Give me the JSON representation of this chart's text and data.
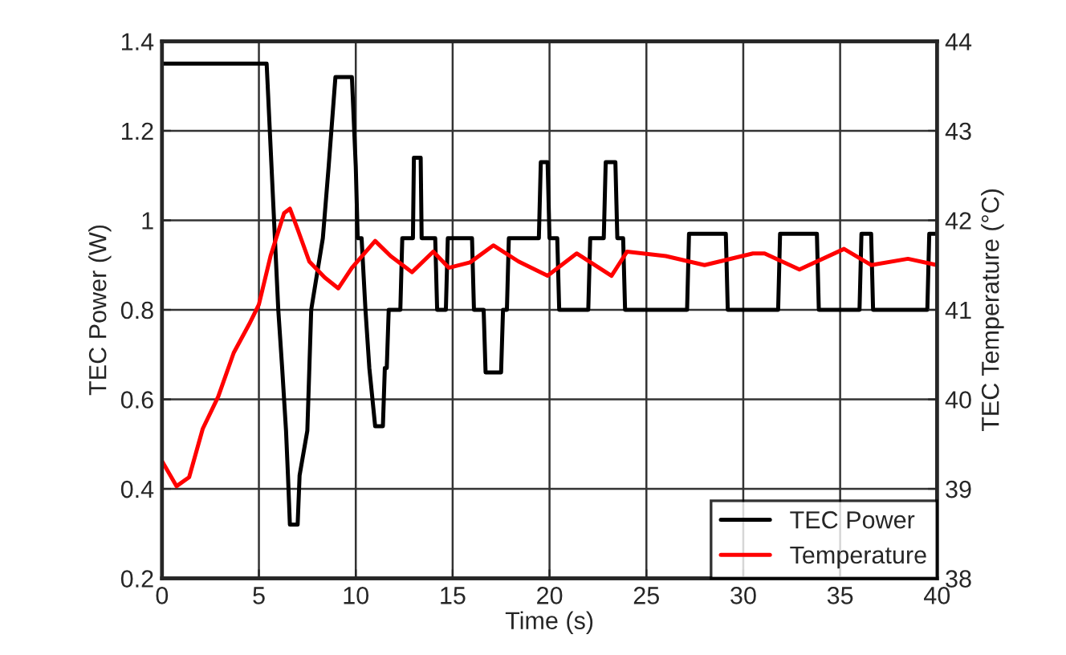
{
  "chart_data": {
    "type": "line",
    "xlabel": "Time (s)",
    "ylabel": "TEC Power (W)",
    "y2label": "TEC Temperature (°C)",
    "xlim": [
      0,
      40
    ],
    "xticks": [
      0,
      5,
      10,
      15,
      20,
      25,
      30,
      35,
      40
    ],
    "ylim": [
      0.2,
      1.4
    ],
    "yticks": [
      0.2,
      0.4,
      0.6,
      0.8,
      1,
      1.2,
      1.4
    ],
    "y2lim": [
      38,
      44
    ],
    "y2ticks": [
      38,
      39,
      40,
      41,
      42,
      43,
      44
    ],
    "grid": true,
    "legend": "bottom right",
    "marker": "none",
    "line_style": "solid",
    "series": [
      {
        "name": "TEC Power",
        "color": "#000000",
        "x": [
          0,
          5.4,
          6.0,
          6.2,
          6.4,
          6.5,
          6.6,
          7.0,
          7.1,
          7.5,
          7.7,
          8.3,
          8.6,
          8.95,
          9.8,
          10.0,
          10.1,
          10.3,
          10.5,
          10.7,
          11.0,
          11.4,
          11.5,
          11.6,
          11.7,
          12.3,
          12.4,
          12.95,
          13.0,
          13.35,
          13.4,
          14.1,
          14.2,
          14.65,
          14.75,
          16.0,
          16.1,
          16.6,
          16.7,
          17.5,
          17.6,
          17.8,
          17.9,
          19.45,
          19.55,
          19.9,
          20.0,
          20.4,
          20.5,
          22.0,
          22.1,
          22.8,
          22.9,
          23.4,
          23.5,
          23.8,
          23.9,
          27.1,
          27.2,
          29.1,
          29.2,
          31.8,
          31.9,
          33.8,
          33.9,
          36.0,
          36.1,
          36.6,
          36.7,
          39.5,
          39.6,
          40
        ],
        "values": [
          1.35,
          1.35,
          0.8,
          0.67,
          0.53,
          0.43,
          0.32,
          0.32,
          0.43,
          0.53,
          0.8,
          0.96,
          1.12,
          1.32,
          1.32,
          1.12,
          0.96,
          0.96,
          0.8,
          0.67,
          0.54,
          0.54,
          0.67,
          0.67,
          0.8,
          0.8,
          0.96,
          0.96,
          1.14,
          1.14,
          0.96,
          0.96,
          0.8,
          0.8,
          0.96,
          0.96,
          0.8,
          0.8,
          0.66,
          0.66,
          0.8,
          0.8,
          0.96,
          0.96,
          1.13,
          1.13,
          0.96,
          0.96,
          0.8,
          0.8,
          0.96,
          0.96,
          1.13,
          1.13,
          0.96,
          0.96,
          0.8,
          0.8,
          0.97,
          0.97,
          0.8,
          0.8,
          0.97,
          0.97,
          0.8,
          0.8,
          0.97,
          0.97,
          0.8,
          0.8,
          0.97,
          0.97
        ]
      },
      {
        "name": "Temperature",
        "color": "#ff0000",
        "axis": "y2",
        "x": [
          0,
          0.75,
          1.4,
          2.1,
          2.9,
          3.7,
          4.5,
          5.0,
          5.6,
          6.3,
          6.6,
          7.0,
          7.6,
          8.4,
          9.1,
          9.8,
          11.0,
          11.8,
          12.9,
          14.0,
          14.8,
          15.9,
          17.1,
          18.4,
          19.9,
          21.4,
          23.2,
          24.0,
          26.0,
          28.0,
          30.5,
          31.1,
          32.9,
          35.2,
          36.6,
          38.5,
          40
        ],
        "values": [
          39.31,
          39.03,
          39.13,
          39.67,
          40.03,
          40.52,
          40.84,
          41.06,
          41.6,
          42.08,
          42.13,
          41.9,
          41.54,
          41.36,
          41.24,
          41.47,
          41.77,
          41.6,
          41.42,
          41.65,
          41.47,
          41.53,
          41.72,
          41.54,
          41.38,
          41.63,
          41.38,
          41.65,
          41.6,
          41.5,
          41.63,
          41.63,
          41.45,
          41.68,
          41.5,
          41.57,
          41.5
        ]
      }
    ]
  }
}
